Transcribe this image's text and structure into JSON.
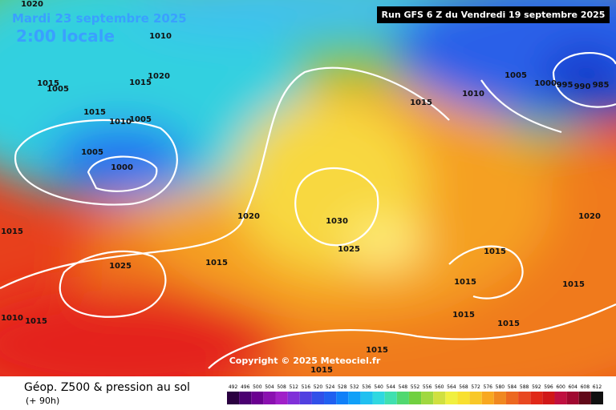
{
  "header": {
    "date": "Mardi 23 septembre 2025",
    "time": "2:00 locale",
    "run": "Run GFS 6 Z du Vendredi 19 septembre 2025"
  },
  "isobar_labels": [
    "1020",
    "1010",
    "1015",
    "1005",
    "1015",
    "1020",
    "1015",
    "1010",
    "1005",
    "1005",
    "1000",
    "1020",
    "1030",
    "1025",
    "1015",
    "1025",
    "1015",
    "1015",
    "1010",
    "1005",
    "1000",
    "995",
    "990",
    "985",
    "1020",
    "1015",
    "1015",
    "1015",
    "1015",
    "1015",
    "1015",
    "1015",
    "1015",
    "1010"
  ],
  "copyright": "Copyright © 2025 Meteociel.fr",
  "footer": {
    "title": "Géop. Z500 & pression au sol",
    "lead": "(+ 90h)",
    "scale": [
      492,
      496,
      500,
      504,
      508,
      512,
      516,
      520,
      524,
      528,
      532,
      536,
      540,
      544,
      548,
      552,
      556,
      560,
      564,
      568,
      572,
      576,
      580,
      584,
      588,
      592,
      596,
      600,
      604,
      608,
      612
    ],
    "colors": [
      "#2a0040",
      "#4a0070",
      "#6a0090",
      "#8a10b0",
      "#a020c8",
      "#8030d8",
      "#5040e0",
      "#3050e8",
      "#2060f0",
      "#1080f8",
      "#10a0f8",
      "#20c0f0",
      "#30d8e0",
      "#40e0b0",
      "#50d870",
      "#70d040",
      "#a0d840",
      "#d0e040",
      "#f0f040",
      "#f8e030",
      "#f8c828",
      "#f8a820",
      "#f08820",
      "#ec6820",
      "#e84820",
      "#e02818",
      "#d01818",
      "#c01040",
      "#a00830",
      "#600818",
      "#101010"
    ]
  }
}
